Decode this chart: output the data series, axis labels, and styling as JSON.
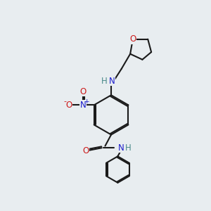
{
  "bg_color": "#e8edf0",
  "bond_color": "#1a1a1a",
  "bond_width": 1.5,
  "atom_colors": {
    "C": "#1a1a1a",
    "N": "#1a1acc",
    "O": "#cc1a1a",
    "H": "#4a8a8a"
  },
  "font_size": 8.5,
  "fig_size": [
    3.0,
    3.0
  ],
  "dpi": 100
}
